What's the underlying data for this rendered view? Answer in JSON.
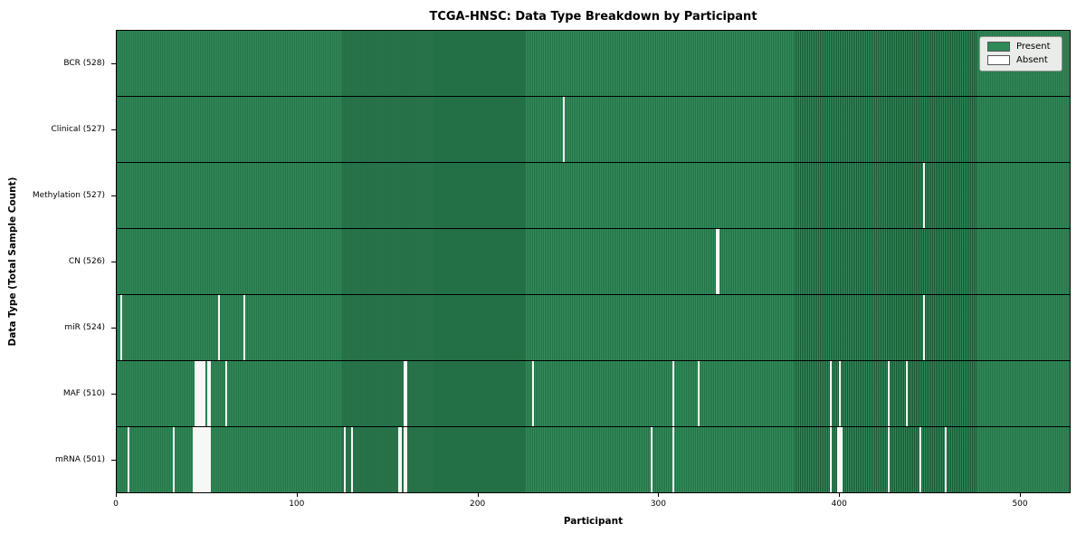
{
  "chart_data": {
    "type": "heatmap",
    "title": "TCGA-HNSC: Data Type Breakdown by Participant",
    "xlabel": "Participant",
    "ylabel": "Data Type (Total Sample Count)",
    "n_participants": 528,
    "xlim": [
      0,
      528
    ],
    "xticks": [
      0,
      100,
      200,
      300,
      400,
      500
    ],
    "legend_position": "upper right",
    "legend": {
      "present_label": "Present",
      "absent_label": "Absent"
    },
    "colors": {
      "present": "#2e8b57",
      "absent": "#ffffff",
      "grid_edge": "#0a2819",
      "row_divider": "#000000"
    },
    "rows": [
      {
        "label": "BCR (528)",
        "data_type": "BCR",
        "present_count": 528,
        "absent_indices": []
      },
      {
        "label": "Clinical (527)",
        "data_type": "Clinical",
        "present_count": 527,
        "absent_indices": [
          247
        ]
      },
      {
        "label": "Methylation (527)",
        "data_type": "Methylation",
        "present_count": 527,
        "absent_indices": [
          447
        ]
      },
      {
        "label": "CN (526)",
        "data_type": "CN",
        "present_count": 526,
        "absent_indices": [
          332,
          333
        ]
      },
      {
        "label": "miR (524)",
        "data_type": "miR",
        "present_count": 524,
        "absent_indices": [
          2,
          56,
          70,
          447
        ]
      },
      {
        "label": "MAF (510)",
        "data_type": "MAF",
        "present_count": 510,
        "absent_indices": [
          43,
          44,
          45,
          46,
          47,
          48,
          50,
          51,
          60,
          159,
          160,
          230,
          308,
          322,
          395,
          400,
          427,
          437
        ]
      },
      {
        "label": "mRNA (501)",
        "data_type": "mRNA",
        "present_count": 501,
        "absent_indices": [
          6,
          31,
          42,
          43,
          44,
          45,
          46,
          47,
          48,
          49,
          50,
          51,
          126,
          130,
          156,
          157,
          159,
          160,
          296,
          308,
          395,
          399,
          400,
          401,
          427,
          445,
          459
        ]
      }
    ]
  }
}
